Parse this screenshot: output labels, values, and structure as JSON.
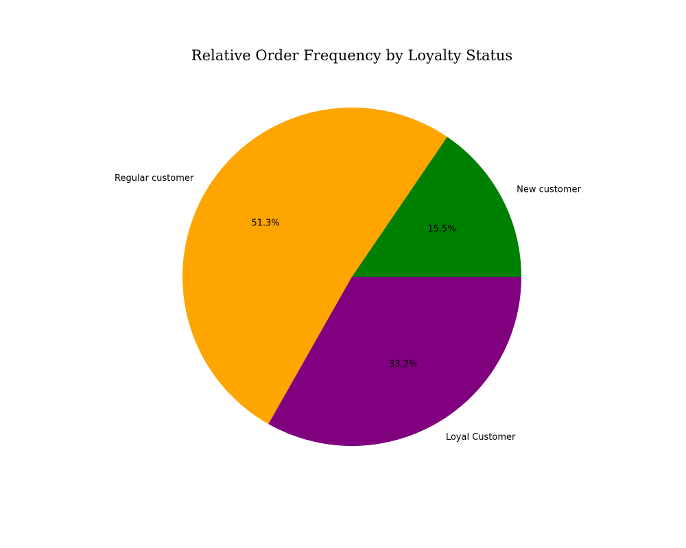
{
  "chart_data": {
    "type": "pie",
    "title": "Relative Order Frequency by Loyalty Status",
    "start_angle_deg": 0,
    "direction": "counterclockwise",
    "slices": [
      {
        "label": "New customer",
        "value": 15.5,
        "pct_label": "15.5%",
        "color": "#008000"
      },
      {
        "label": "Regular customer",
        "value": 51.3,
        "pct_label": "51.3%",
        "color": "#FFA500"
      },
      {
        "label": "Loyal Customer",
        "value": 33.2,
        "pct_label": "33.2%",
        "color": "#800080"
      }
    ]
  }
}
